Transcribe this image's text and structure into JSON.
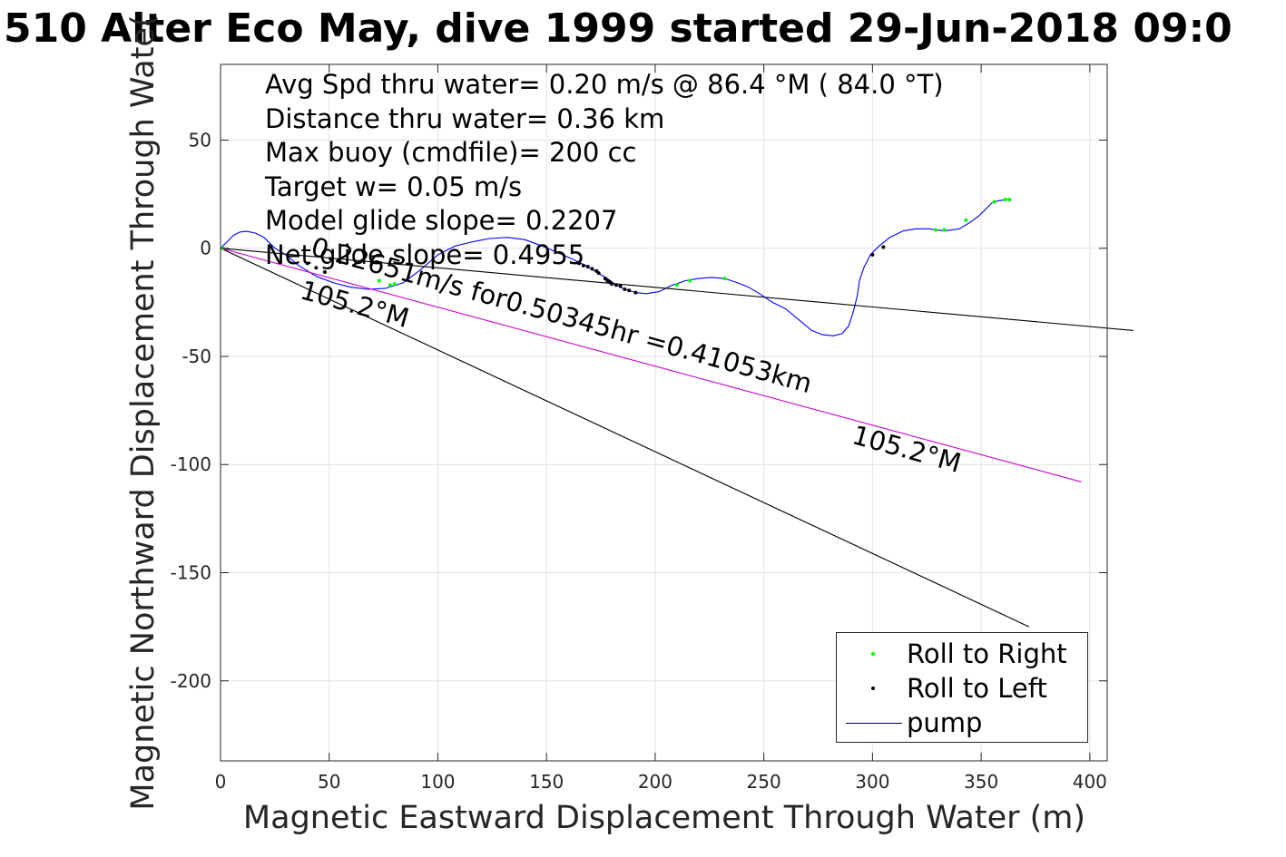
{
  "title": "510 Alter Eco May, dive 1999 started 29-Jun-2018 09:0",
  "chart_data": {
    "type": "line",
    "title": "510 Alter Eco May, dive 1999 started 29-Jun-2018 09:0",
    "xlabel": "Magnetic Eastward Displacement Through Water (m)",
    "ylabel": "Magnetic Northward Displacement Through Water (m)",
    "ylabel_visible": "Magnetic Northward Displacement Through Wate(",
    "xlim": [
      0,
      408
    ],
    "ylim": [
      -237,
      85
    ],
    "xticks": [
      0,
      50,
      100,
      150,
      200,
      250,
      300,
      350,
      400
    ],
    "yticks": [
      -200,
      -150,
      -100,
      -50,
      0,
      50
    ],
    "xtick_labels": [
      "0",
      "50",
      "100",
      "150",
      "200",
      "250",
      "300",
      "350",
      "400"
    ],
    "ytick_labels": [
      "-200",
      "-150",
      "-100",
      "-50",
      "0",
      "50"
    ],
    "grid": true,
    "legend_position": "bottom-right",
    "annotations": [
      "Avg Spd thru water=  0.20 m/s @  86.4 °M ( 84.0 °T)",
      "Distance thru water=  0.36 km",
      "Max buoy (cmdfile)= 200 cc",
      "Target w= 0.05 m/s",
      "Model glide slope= 0.2207",
      "Net glide slope= 0.4955"
    ],
    "current_label": "0.22651m/s for0.50345hr =0.41053km",
    "heading_labels": [
      "105.2°M",
      "105.2°M"
    ],
    "series": [
      {
        "name": "pump",
        "role": "track",
        "color": "#0000ff",
        "x": [
          0,
          3,
          6,
          9,
          12,
          16,
          20,
          25,
          30,
          36,
          44,
          52,
          60,
          68,
          76,
          84,
          92,
          100,
          108,
          116,
          124,
          132,
          140,
          148,
          155,
          162,
          168,
          173,
          178,
          182,
          186,
          191,
          196,
          202,
          208,
          214,
          220,
          226,
          232,
          238,
          243,
          248,
          254,
          260,
          266,
          272,
          277,
          282,
          286,
          289,
          291,
          293,
          294,
          296,
          299,
          303,
          308,
          314,
          320,
          326,
          333,
          340,
          345,
          349,
          352,
          355,
          358,
          362,
          364
        ],
        "y": [
          0,
          3,
          6,
          7.5,
          7.8,
          7,
          5,
          0,
          -3,
          -8,
          -13,
          -16,
          -18,
          -19,
          -18.5,
          -16,
          -10,
          -3,
          1,
          3,
          4.5,
          5,
          4,
          1,
          -2,
          -5,
          -8,
          -11,
          -14,
          -17,
          -19,
          -20.5,
          -21,
          -20,
          -17,
          -15,
          -14,
          -13.5,
          -14,
          -16,
          -18,
          -21,
          -25,
          -28,
          -33,
          -38,
          -40,
          -40.5,
          -39.5,
          -36,
          -30,
          -22,
          -15,
          -9,
          -3,
          1,
          5,
          8,
          9,
          9,
          8,
          9,
          12,
          15,
          18,
          21,
          22,
          22.5,
          22.5
        ]
      },
      {
        "name": "Roll to Right",
        "role": "markers",
        "color": "#00ff00",
        "x": [
          1,
          73,
          78,
          80,
          210,
          216,
          232,
          329,
          333,
          343,
          356,
          361,
          363
        ],
        "y": [
          0,
          -15,
          -17,
          -16.5,
          -17,
          -15,
          -14,
          8.5,
          8.5,
          13,
          21.5,
          22.5,
          22.5
        ]
      },
      {
        "name": "Roll to Left",
        "role": "markers",
        "color": "#000000",
        "x": [
          40,
          44,
          48,
          165,
          167,
          169,
          171,
          173,
          174,
          177,
          178,
          179,
          180,
          182,
          184,
          186,
          188,
          191,
          300,
          305
        ],
        "y": [
          -7,
          -9,
          -11,
          -7,
          -8,
          -8.5,
          -9.5,
          -10.5,
          -11.5,
          -14,
          -15,
          -15.5,
          -16.5,
          -17,
          -17.5,
          -19,
          -19.5,
          -20.5,
          -3,
          0.5
        ]
      },
      {
        "name": "",
        "role": "net displacement line",
        "color": "#000000",
        "x": [
          0,
          420
        ],
        "y": [
          0,
          -38
        ]
      },
      {
        "name": "",
        "role": "current line",
        "color": "#cc00cc",
        "x": [
          0,
          396
        ],
        "y": [
          0,
          -108
        ]
      },
      {
        "name": "",
        "role": "heading line",
        "color": "#000000",
        "x": [
          0,
          372
        ],
        "y": [
          0,
          -175
        ]
      }
    ],
    "legend_entries": [
      {
        "label": "Roll to Right",
        "symbol": "dot",
        "color": "#00ff00"
      },
      {
        "label": "Roll to Left",
        "symbol": "dot",
        "color": "#000000"
      },
      {
        "label": "pump",
        "symbol": "line",
        "color": "#000080"
      }
    ]
  }
}
